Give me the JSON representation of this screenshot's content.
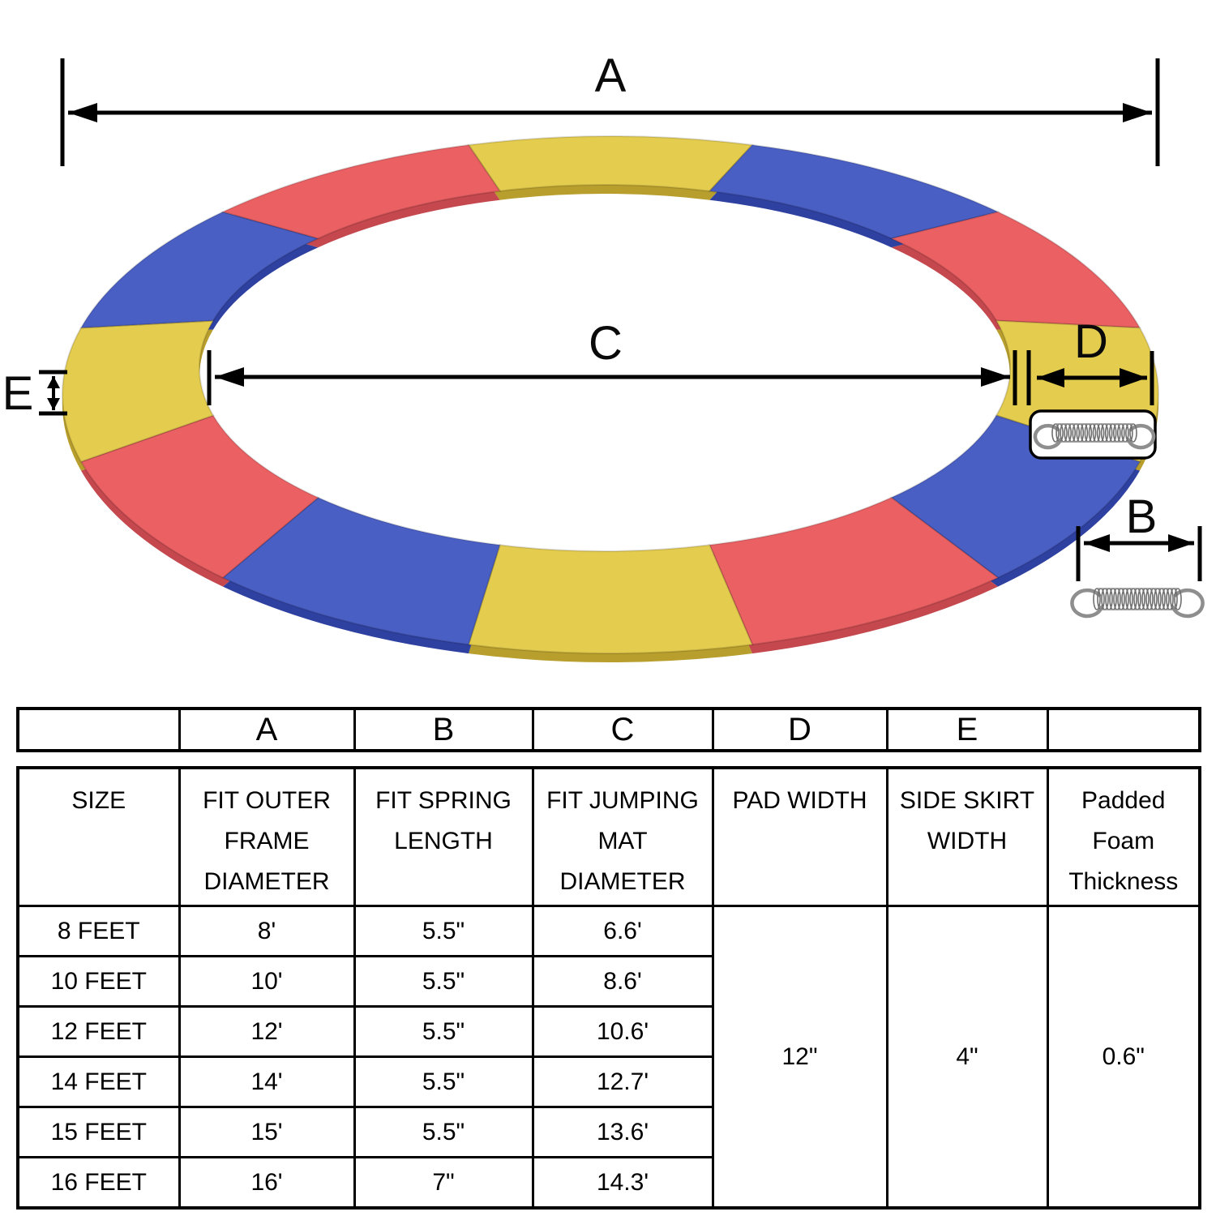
{
  "diagram": {
    "labels": {
      "a": "A",
      "b": "B",
      "c": "C",
      "d": "D",
      "e": "E"
    },
    "colors": {
      "yellow": "#E4CC4E",
      "blue": "#4A5FC4",
      "red": "#EA6063",
      "yellow_dark": "#B89E2C",
      "blue_dark": "#2F41A0",
      "red_dark": "#C4484E",
      "line": "#000000",
      "spring_metal": "#8E8E8E",
      "spring_dark": "#6F6F6F",
      "box_fill": "#FFFFFF"
    },
    "segments": [
      "yellow",
      "blue",
      "red",
      "yellow",
      "blue",
      "red",
      "yellow",
      "blue",
      "red",
      "yellow",
      "blue",
      "red"
    ]
  },
  "table": {
    "letter_row": [
      "",
      "A",
      "B",
      "C",
      "D",
      "E",
      ""
    ],
    "headers": [
      [
        "SIZE"
      ],
      [
        "FIT OUTER",
        "FRAME",
        "DIAMETER"
      ],
      [
        "FIT SPRING",
        "LENGTH"
      ],
      [
        "FIT JUMPING",
        "MAT",
        "DIAMETER"
      ],
      [
        "PAD WIDTH"
      ],
      [
        "SIDE SKIRT",
        "WIDTH"
      ],
      [
        "Padded",
        "Foam",
        "Thickness"
      ]
    ],
    "rows": [
      [
        "8 FEET",
        "8'",
        "5.5\"",
        "6.6'"
      ],
      [
        "10 FEET",
        "10'",
        "5.5\"",
        "8.6'"
      ],
      [
        "12 FEET",
        "12'",
        "5.5\"",
        "10.6'"
      ],
      [
        "14 FEET",
        "14'",
        "5.5\"",
        "12.7'"
      ],
      [
        "15 FEET",
        "15'",
        "5.5\"",
        "13.6'"
      ],
      [
        "16 FEET",
        "16'",
        "7\"",
        "14.3'"
      ]
    ],
    "merged": {
      "pad_width": "12\"",
      "side_skirt_width": "4\"",
      "padded_foam_thickness": "0.6\""
    }
  }
}
